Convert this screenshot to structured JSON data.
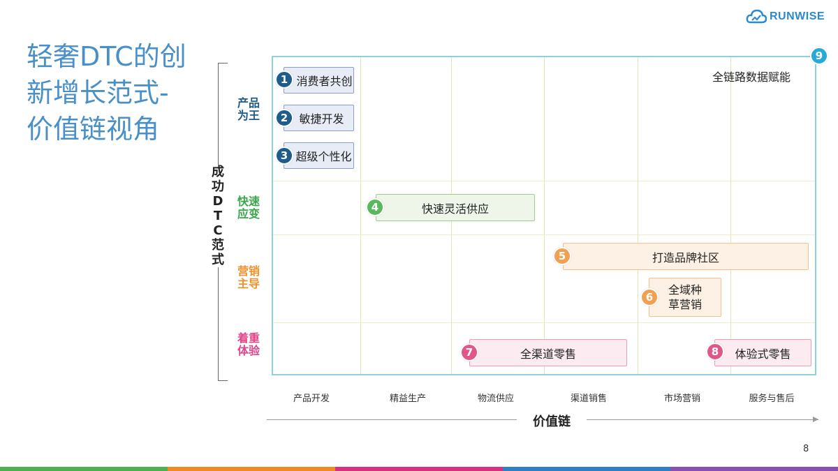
{
  "title": "轻奢DTC的创新增长范式-价值链视角",
  "logo": {
    "text": "RUNWISE"
  },
  "y_axis": {
    "label": "成\n功\nD\nT\nC\n范\n式"
  },
  "rows": [
    {
      "label": "产品\n为王",
      "color": "#1e5c8c"
    },
    {
      "label": "快速\n应变",
      "color": "#3aa64a"
    },
    {
      "label": "营销\n主导",
      "color": "#f0922a"
    },
    {
      "label": "着重\n体验",
      "color": "#e0468a"
    }
  ],
  "x_axis": {
    "label": "价值链",
    "ticks": [
      "产品开发",
      "精益生产",
      "物流供应",
      "渠道销售",
      "市场营销",
      "服务与售后"
    ]
  },
  "items": [
    {
      "num": "1",
      "label": "消费者共创"
    },
    {
      "num": "2",
      "label": "敏捷开发"
    },
    {
      "num": "3",
      "label": "超级个性化"
    },
    {
      "num": "4",
      "label": "快速灵活供应"
    },
    {
      "num": "5",
      "label": "打造品牌社区"
    },
    {
      "num": "6",
      "label": "全域种\n草营销"
    },
    {
      "num": "7",
      "label": "全渠道零售"
    },
    {
      "num": "8",
      "label": "体验式零售"
    },
    {
      "num": "9",
      "label": "全链路数据赋能"
    }
  ],
  "colors": {
    "blue": "#1e5c8c",
    "green": "#5cb85c",
    "orange": "#f0a050",
    "pink": "#e0588a",
    "cyan": "#29a9d6"
  },
  "page_number": "8"
}
